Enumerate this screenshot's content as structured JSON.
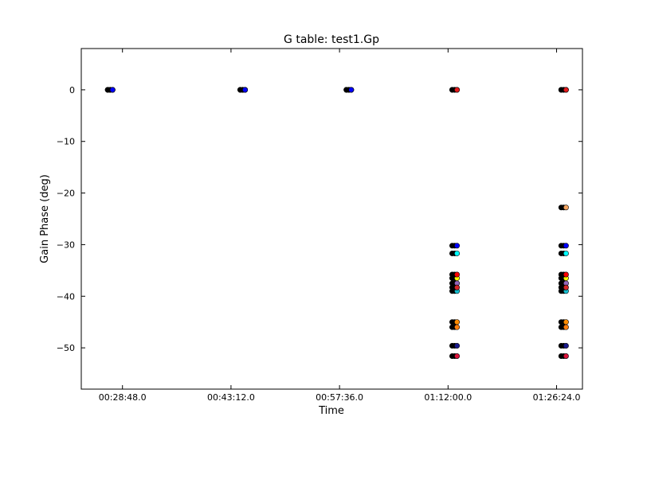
{
  "chart_data": {
    "type": "scatter",
    "title": "G table: test1.Gp",
    "xlabel": "Time",
    "ylabel": "Gain Phase (deg)",
    "xlim_seconds": [
      1400,
      5390
    ],
    "ylim": [
      -58,
      8
    ],
    "xticks": [
      {
        "t": 1728,
        "label": "00:28:48.0"
      },
      {
        "t": 2592,
        "label": "00:43:12.0"
      },
      {
        "t": 3456,
        "label": "00:57:36.0"
      },
      {
        "t": 4320,
        "label": "01:12:00.0"
      },
      {
        "t": 5184,
        "label": "01:26:24.0"
      }
    ],
    "yticks": [
      0,
      -10,
      -20,
      -30,
      -40,
      -50
    ],
    "ytick_labels": [
      "0",
      "−10",
      "−20",
      "−30",
      "−40",
      "−50"
    ],
    "grid": false,
    "times": [
      1630,
      2685,
      3530,
      4372,
      5240
    ],
    "series": [
      {
        "color": "#000000",
        "phase": [
          0,
          0,
          0,
          0,
          0
        ]
      },
      {
        "color": "#1a1a8c",
        "phase": [
          0,
          0,
          0,
          -49.6,
          -49.6
        ]
      },
      {
        "color": "#0000ff",
        "phase": [
          0,
          0,
          0,
          -30.2,
          -30.2
        ]
      },
      {
        "color": "#e31a1c",
        "phase": [
          null,
          null,
          null,
          0,
          0
        ]
      },
      {
        "color": "#ff8c00",
        "phase": [
          null,
          null,
          null,
          -45.0,
          -45.0
        ]
      },
      {
        "color": "#ff7f0e",
        "phase": [
          null,
          null,
          null,
          -46.0,
          -46.0
        ]
      },
      {
        "color": "#ffff00",
        "phase": [
          null,
          null,
          null,
          -36.5,
          -36.5
        ]
      },
      {
        "color": "#ff0000",
        "phase": [
          null,
          null,
          null,
          -35.8,
          -35.8
        ]
      },
      {
        "color": "#00ffff",
        "phase": [
          null,
          null,
          null,
          -31.7,
          -31.7
        ]
      },
      {
        "color": "#17becf",
        "phase": [
          null,
          null,
          null,
          -39.0,
          -39.0
        ]
      },
      {
        "color": "#9467bd",
        "phase": [
          null,
          null,
          null,
          -37.5,
          -37.5
        ]
      },
      {
        "color": "#d62728",
        "phase": [
          null,
          null,
          null,
          -38.3,
          -38.3
        ]
      },
      {
        "color": "#dc143c",
        "phase": [
          null,
          null,
          null,
          -51.6,
          -51.6
        ]
      },
      {
        "color": "#f4a460",
        "phase": [
          null,
          null,
          null,
          null,
          -22.8
        ]
      }
    ]
  }
}
